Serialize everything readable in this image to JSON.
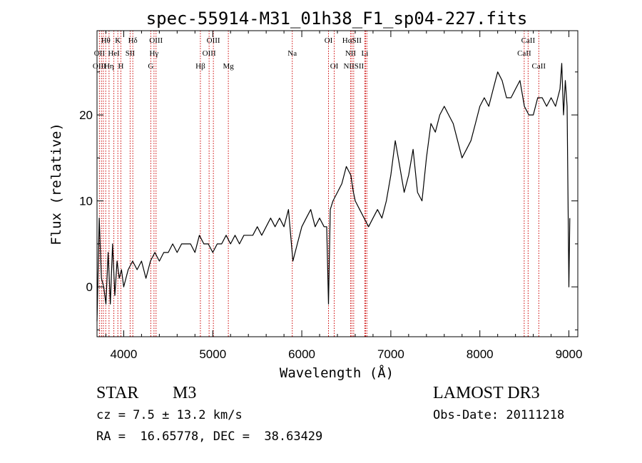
{
  "chart_data": {
    "type": "line",
    "title": "spec-55914-M31_01h38_F1_sp04-227.fits",
    "xlabel": "Wavelength (Å)",
    "ylabel": "Flux (relative)",
    "xlim": [
      3700,
      9100
    ],
    "ylim": [
      -5.8,
      29.8
    ],
    "x_ticks": [
      4000,
      5000,
      6000,
      7000,
      8000,
      9000
    ],
    "y_ticks": [
      0,
      10,
      20
    ],
    "x_tick_labels": [
      "4000",
      "5000",
      "6000",
      "7000",
      "8000",
      "9000"
    ],
    "y_tick_labels": [
      "0",
      "10",
      "20"
    ],
    "series": [
      {
        "color": "#000000",
        "x": [
          3700,
          3725,
          3750,
          3775,
          3800,
          3825,
          3850,
          3875,
          3900,
          3925,
          3950,
          3975,
          4000,
          4050,
          4100,
          4150,
          4200,
          4250,
          4300,
          4350,
          4400,
          4450,
          4500,
          4550,
          4600,
          4650,
          4700,
          4750,
          4800,
          4850,
          4900,
          4950,
          5000,
          5050,
          5100,
          5150,
          5200,
          5250,
          5300,
          5350,
          5400,
          5450,
          5500,
          5550,
          5600,
          5650,
          5700,
          5750,
          5800,
          5850,
          5900,
          5925,
          5950,
          6000,
          6050,
          6100,
          6150,
          6200,
          6250,
          6280,
          6300,
          6320,
          6350,
          6400,
          6450,
          6500,
          6550,
          6580,
          6600,
          6650,
          6700,
          6750,
          6800,
          6850,
          6900,
          6950,
          7000,
          7050,
          7100,
          7150,
          7200,
          7250,
          7300,
          7350,
          7400,
          7450,
          7500,
          7550,
          7600,
          7650,
          7700,
          7750,
          7800,
          7850,
          7900,
          7950,
          8000,
          8050,
          8100,
          8150,
          8200,
          8250,
          8300,
          8350,
          8400,
          8450,
          8500,
          8550,
          8600,
          8650,
          8700,
          8750,
          8800,
          8850,
          8900,
          8920,
          8940,
          8960,
          8980,
          9000,
          9010
        ],
        "y": [
          -4,
          8,
          1,
          0,
          -2,
          4,
          -2,
          5,
          -1,
          3,
          1,
          2,
          0,
          2,
          3,
          2,
          3,
          1,
          3,
          4,
          3,
          4,
          4,
          5,
          4,
          5,
          5,
          5,
          4,
          6,
          5,
          5,
          4,
          5,
          5,
          6,
          5,
          6,
          5,
          6,
          6,
          6,
          7,
          6,
          7,
          8,
          7,
          8,
          7,
          9,
          3,
          4,
          5,
          7,
          8,
          9,
          7,
          8,
          7,
          7,
          -2,
          9,
          10,
          11,
          12,
          14,
          13,
          11,
          10,
          9,
          8,
          7,
          8,
          9,
          8,
          10,
          13,
          17,
          14,
          11,
          13,
          16,
          11,
          10,
          15,
          19,
          18,
          20,
          21,
          20,
          19,
          17,
          15,
          16,
          17,
          19,
          21,
          22,
          21,
          23,
          25,
          24,
          22,
          22,
          23,
          24,
          21,
          20,
          20,
          22,
          22,
          21,
          22,
          21,
          23,
          26,
          20,
          24,
          21,
          0,
          8
        ]
      }
    ],
    "spectral_lines": [
      {
        "label": "Hθ",
        "x": 3798,
        "row": 1
      },
      {
        "label": "K",
        "x": 3934,
        "row": 1
      },
      {
        "label": "Hδ",
        "x": 4102,
        "row": 1
      },
      {
        "label": "OIII",
        "x": 4363,
        "row": 1
      },
      {
        "label": "OIII",
        "x": 5007,
        "row": 1
      },
      {
        "label": "OI",
        "x": 6300,
        "row": 1
      },
      {
        "label": "HαSII",
        "x": 6563,
        "row": 1
      },
      {
        "label": "CaII",
        "x": 8542,
        "row": 1
      },
      {
        "label": "OII",
        "x": 3727,
        "row": 2
      },
      {
        "label": "HeI",
        "x": 3889,
        "row": 2
      },
      {
        "label": "SII",
        "x": 4072,
        "row": 2
      },
      {
        "label": "Hγ",
        "x": 4340,
        "row": 2
      },
      {
        "label": "OIII",
        "x": 4959,
        "row": 2
      },
      {
        "label": "Na",
        "x": 5893,
        "row": 2
      },
      {
        "label": "NII",
        "x": 6548,
        "row": 2
      },
      {
        "label": "Li",
        "x": 6708,
        "row": 2
      },
      {
        "label": "CaII",
        "x": 8498,
        "row": 2
      },
      {
        "label": "OIII",
        "x": 3727,
        "row": 3
      },
      {
        "label": "Hη",
        "x": 3835,
        "row": 3
      },
      {
        "label": "H",
        "x": 3968,
        "row": 3
      },
      {
        "label": "G",
        "x": 4304,
        "row": 3
      },
      {
        "label": "Hβ",
        "x": 4861,
        "row": 3
      },
      {
        "label": "Mg",
        "x": 5175,
        "row": 3
      },
      {
        "label": "OI",
        "x": 6364,
        "row": 3
      },
      {
        "label": "NIISII",
        "x": 6583,
        "row": 3
      },
      {
        "label": "CaII",
        "x": 8662,
        "row": 3
      }
    ],
    "line_marker_x": [
      3727,
      3750,
      3771,
      3798,
      3835,
      3889,
      3934,
      3968,
      4072,
      4102,
      4304,
      4340,
      4363,
      4861,
      4959,
      5007,
      5175,
      5893,
      6300,
      6364,
      6548,
      6563,
      6583,
      6708,
      6716,
      6731,
      8498,
      8542,
      8662
    ],
    "line_marker_color": "#cc0000",
    "grid": false,
    "legend": "none"
  },
  "info": {
    "object_type": "STAR",
    "subclass": "M3",
    "cz": "cz = 7.5 ± 13.2 km/s",
    "radec": "RA =  16.65778, DEC =  38.63429",
    "survey": "LAMOST DR3",
    "obs_date": "Obs-Date: 20111218"
  }
}
